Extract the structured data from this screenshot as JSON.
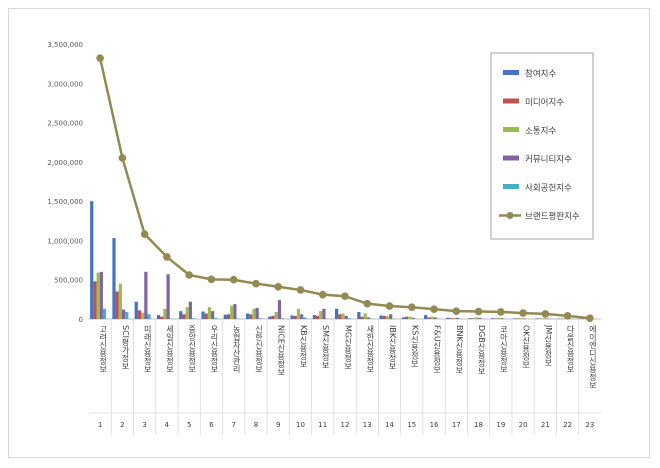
{
  "chart_data": {
    "type": "bar",
    "title": "",
    "xlabel": "",
    "ylabel": "",
    "ylim": [
      0,
      3500000
    ],
    "yticks": [
      0,
      500000,
      1000000,
      1500000,
      2000000,
      2500000,
      3000000,
      3500000
    ],
    "ytick_labels": [
      "0",
      "500,000",
      "1,000,000",
      "1,500,000",
      "2,000,000",
      "2,500,000",
      "3,000,000",
      "3,500,000"
    ],
    "grid": false,
    "legend_position": "top-right",
    "categories": [
      "고려신용정보",
      "SCI평가정보",
      "미래신용정보",
      "세일신용정보",
      "중앙신용정보",
      "우리신용정보",
      "농협자산관리",
      "신한신용정보",
      "NICE신용정보",
      "KB신용정보",
      "SM신용정보",
      "MG신용정보",
      "새한신용정보",
      "IBK신용정보",
      "KS신용정보",
      "F&U신용정보",
      "BNK신용정보",
      "DGB신용정보",
      "코아신용정보",
      "OK신용정보",
      "JM신용정보",
      "다올신용정보",
      "에이엔디신용정보"
    ],
    "ranks": [
      "1",
      "2",
      "3",
      "4",
      "5",
      "6",
      "7",
      "8",
      "9",
      "10",
      "11",
      "12",
      "13",
      "14",
      "15",
      "16",
      "17",
      "18",
      "19",
      "20",
      "21",
      "22",
      "23"
    ],
    "series": [
      {
        "name": "참여지수",
        "color": "#4472c4",
        "kind": "bar",
        "values": [
          1500000,
          1030000,
          220000,
          50000,
          100000,
          95000,
          55000,
          70000,
          30000,
          45000,
          50000,
          130000,
          90000,
          45000,
          20000,
          50000,
          15000,
          10000,
          10000,
          8000,
          8000,
          5000,
          3000
        ]
      },
      {
        "name": "미디어지수",
        "color": "#c0504d",
        "kind": "bar",
        "values": [
          480000,
          350000,
          110000,
          30000,
          60000,
          70000,
          60000,
          60000,
          40000,
          40000,
          40000,
          60000,
          30000,
          40000,
          30000,
          20000,
          10000,
          8000,
          8000,
          8000,
          6000,
          5000,
          3000
        ]
      },
      {
        "name": "소통지수",
        "color": "#9bbb59",
        "kind": "bar",
        "values": [
          590000,
          450000,
          80000,
          130000,
          150000,
          150000,
          170000,
          130000,
          90000,
          130000,
          100000,
          70000,
          70000,
          35000,
          30000,
          30000,
          15000,
          20000,
          15000,
          10000,
          10000,
          10000,
          5000
        ]
      },
      {
        "name": "커뮤니티지수",
        "color": "#8064a2",
        "kind": "bar",
        "values": [
          600000,
          120000,
          600000,
          570000,
          220000,
          100000,
          190000,
          140000,
          240000,
          60000,
          130000,
          40000,
          20000,
          60000,
          15000,
          20000,
          15000,
          15000,
          10000,
          8000,
          8000,
          5000,
          3000
        ]
      },
      {
        "name": "사회공헌지수",
        "color": "#4bacc6",
        "kind": "bar",
        "values": [
          130000,
          90000,
          60000,
          5000,
          10000,
          15000,
          5000,
          10000,
          10000,
          20000,
          5000,
          10000,
          5000,
          5000,
          5000,
          5000,
          3000,
          3000,
          3000,
          2000,
          2000,
          2000,
          1000
        ]
      },
      {
        "name": "브랜드평판지수",
        "color": "#938953",
        "kind": "line",
        "values": [
          3320000,
          2050000,
          1080000,
          790000,
          560000,
          505000,
          500000,
          450000,
          410000,
          370000,
          310000,
          290000,
          195000,
          165000,
          150000,
          125000,
          100000,
          95000,
          90000,
          75000,
          65000,
          40000,
          10000
        ]
      }
    ]
  }
}
